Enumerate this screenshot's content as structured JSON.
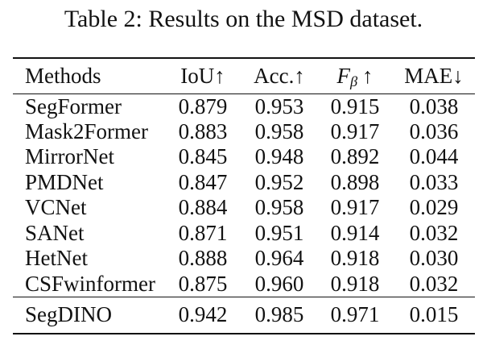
{
  "caption": "Table 2: Results on the MSD dataset.",
  "table": {
    "headers": {
      "methods": "Methods",
      "iou": "IoU↑",
      "acc": "Acc.↑",
      "fbeta": {
        "base": "F",
        "sub": "β",
        "arrow": "↑"
      },
      "mae": "MAE↓"
    },
    "rows": [
      {
        "method": "SegFormer",
        "iou": "0.879",
        "acc": "0.953",
        "fbeta": "0.915",
        "mae": "0.038"
      },
      {
        "method": "Mask2Former",
        "iou": "0.883",
        "acc": "0.958",
        "fbeta": "0.917",
        "mae": "0.036"
      },
      {
        "method": "MirrorNet",
        "iou": "0.845",
        "acc": "0.948",
        "fbeta": "0.892",
        "mae": "0.044"
      },
      {
        "method": "PMDNet",
        "iou": "0.847",
        "acc": "0.952",
        "fbeta": "0.898",
        "mae": "0.033"
      },
      {
        "method": "VCNet",
        "iou": "0.884",
        "acc": "0.958",
        "fbeta": "0.917",
        "mae": "0.029"
      },
      {
        "method": "SANet",
        "iou": "0.871",
        "acc": "0.951",
        "fbeta": "0.914",
        "mae": "0.032"
      },
      {
        "method": "HetNet",
        "iou": "0.888",
        "acc": "0.964",
        "fbeta": "0.918",
        "mae": "0.030"
      },
      {
        "method": "CSFwinformer",
        "iou": "0.875",
        "acc": "0.960",
        "fbeta": "0.918",
        "mae": "0.032"
      }
    ],
    "highlight_row": {
      "method": "SegDINO",
      "iou": "0.942",
      "acc": "0.985",
      "fbeta": "0.971",
      "mae": "0.015"
    }
  },
  "chart_data": {
    "type": "table",
    "title": "Table 2: Results on the MSD dataset.",
    "columns": [
      "Methods",
      "IoU↑",
      "Acc.↑",
      "Fβ ↑",
      "MAE↓"
    ],
    "rows": [
      [
        "SegFormer",
        0.879,
        0.953,
        0.915,
        0.038
      ],
      [
        "Mask2Former",
        0.883,
        0.958,
        0.917,
        0.036
      ],
      [
        "MirrorNet",
        0.845,
        0.948,
        0.892,
        0.044
      ],
      [
        "PMDNet",
        0.847,
        0.952,
        0.898,
        0.033
      ],
      [
        "VCNet",
        0.884,
        0.958,
        0.917,
        0.029
      ],
      [
        "SANet",
        0.871,
        0.951,
        0.914,
        0.032
      ],
      [
        "HetNet",
        0.888,
        0.964,
        0.918,
        0.03
      ],
      [
        "CSFwinformer",
        0.875,
        0.96,
        0.918,
        0.032
      ],
      [
        "SegDINO",
        0.942,
        0.985,
        0.971,
        0.015
      ]
    ],
    "notes": "Last row (SegDINO) is bold / best results"
  }
}
